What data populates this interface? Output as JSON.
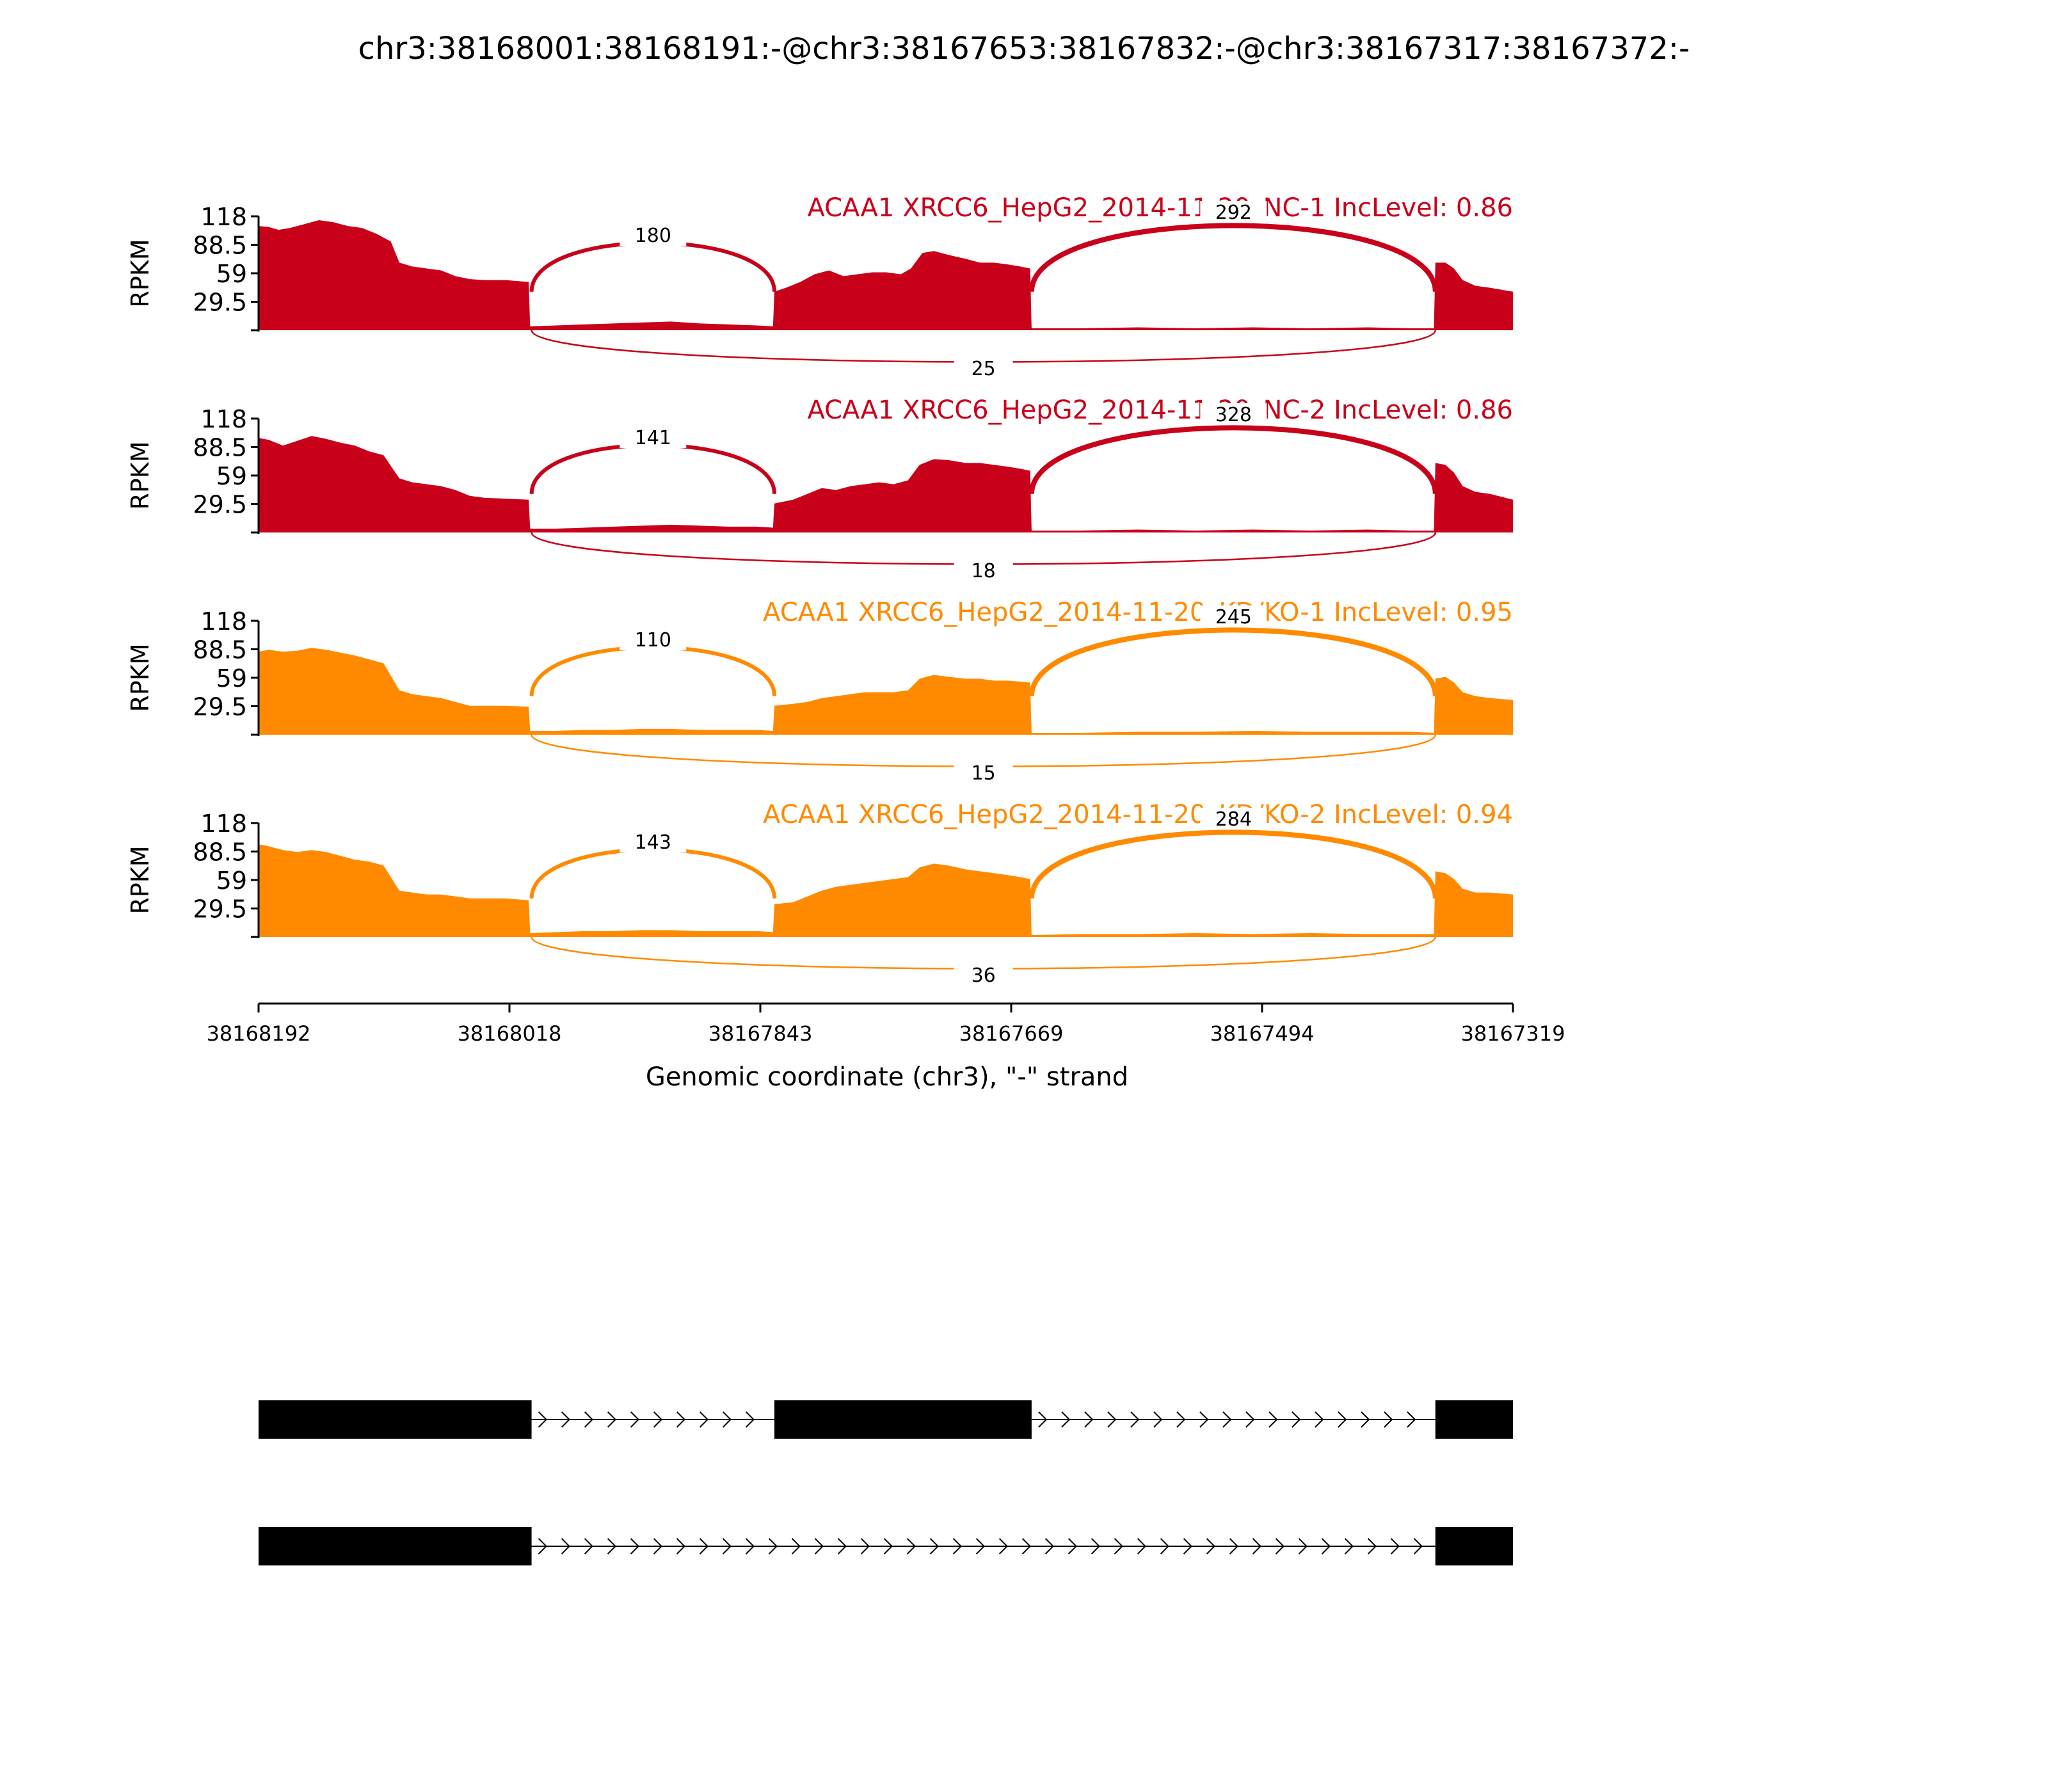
{
  "chart_data": {
    "type": "area",
    "title": "chr3:38168001:38168191:-@chr3:38167653:38167832:-@chr3:38167317:38167372:-",
    "xlabel": "Genomic coordinate (chr3), \"-\" strand",
    "ylabel": "RPKM",
    "xlim": [
      38168192,
      38167319
    ],
    "x_ticks": [
      "38168192",
      "38168018",
      "38167843",
      "38167669",
      "38167494",
      "38167319"
    ],
    "ylim": [
      0,
      118
    ],
    "y_ticks": [
      "118",
      "88.5",
      "59",
      "29.5"
    ],
    "colors": {
      "NC": "#c9001a",
      "KD": "#ff8a00",
      "gene": "#000000"
    },
    "exons": [
      [
        38168192,
        38168002
      ],
      [
        38167833,
        38167654
      ],
      [
        38167373,
        38167319
      ]
    ],
    "panels": [
      {
        "label": "ACAA1 XRCC6_HepG2_2014-11-20_NC-1 IncLevel: 0.86",
        "group": "NC",
        "junctions": [
          {
            "name": "upper-junction-1",
            "count": "180",
            "side": "top"
          },
          {
            "name": "upper-junction-2",
            "count": "292",
            "side": "top"
          },
          {
            "name": "skip-junction",
            "count": "25",
            "side": "bottom"
          }
        ],
        "coverage": [
          [
            38168192,
            108
          ],
          [
            38168185,
            107
          ],
          [
            38168178,
            104
          ],
          [
            38168170,
            106
          ],
          [
            38168160,
            110
          ],
          [
            38168150,
            114
          ],
          [
            38168140,
            112
          ],
          [
            38168130,
            108
          ],
          [
            38168120,
            106
          ],
          [
            38168110,
            100
          ],
          [
            38168100,
            92
          ],
          [
            38168094,
            70
          ],
          [
            38168085,
            66
          ],
          [
            38168075,
            64
          ],
          [
            38168065,
            62
          ],
          [
            38168055,
            56
          ],
          [
            38168045,
            53
          ],
          [
            38168035,
            52
          ],
          [
            38168020,
            52
          ],
          [
            38168004,
            50
          ],
          [
            38168003,
            4
          ],
          [
            38167985,
            5
          ],
          [
            38167965,
            6
          ],
          [
            38167945,
            7
          ],
          [
            38167925,
            8
          ],
          [
            38167905,
            9
          ],
          [
            38167885,
            7
          ],
          [
            38167865,
            6
          ],
          [
            38167845,
            5
          ],
          [
            38167834,
            4
          ],
          [
            38167833,
            40
          ],
          [
            38167825,
            44
          ],
          [
            38167815,
            50
          ],
          [
            38167805,
            58
          ],
          [
            38167795,
            62
          ],
          [
            38167785,
            56
          ],
          [
            38167775,
            58
          ],
          [
            38167765,
            60
          ],
          [
            38167755,
            60
          ],
          [
            38167745,
            58
          ],
          [
            38167738,
            64
          ],
          [
            38167730,
            80
          ],
          [
            38167722,
            82
          ],
          [
            38167712,
            78
          ],
          [
            38167700,
            74
          ],
          [
            38167690,
            70
          ],
          [
            38167680,
            70
          ],
          [
            38167670,
            68
          ],
          [
            38167662,
            66
          ],
          [
            38167655,
            64
          ],
          [
            38167654,
            2
          ],
          [
            38167620,
            2
          ],
          [
            38167580,
            3
          ],
          [
            38167540,
            2
          ],
          [
            38167500,
            3
          ],
          [
            38167460,
            2
          ],
          [
            38167420,
            3
          ],
          [
            38167390,
            2
          ],
          [
            38167374,
            2
          ],
          [
            38167373,
            70
          ],
          [
            38167366,
            70
          ],
          [
            38167360,
            64
          ],
          [
            38167354,
            52
          ],
          [
            38167345,
            46
          ],
          [
            38167335,
            44
          ],
          [
            38167319,
            40
          ]
        ]
      },
      {
        "label": "ACAA1 XRCC6_HepG2_2014-11-20_NC-2 IncLevel: 0.86",
        "group": "NC",
        "junctions": [
          {
            "name": "upper-junction-1",
            "count": "141",
            "side": "top"
          },
          {
            "name": "upper-junction-2",
            "count": "328",
            "side": "top"
          },
          {
            "name": "skip-junction",
            "count": "18",
            "side": "bottom"
          }
        ],
        "coverage": [
          [
            38168192,
            98
          ],
          [
            38168185,
            96
          ],
          [
            38168175,
            90
          ],
          [
            38168165,
            95
          ],
          [
            38168155,
            100
          ],
          [
            38168145,
            97
          ],
          [
            38168135,
            93
          ],
          [
            38168125,
            90
          ],
          [
            38168115,
            84
          ],
          [
            38168105,
            80
          ],
          [
            38168094,
            56
          ],
          [
            38168085,
            52
          ],
          [
            38168075,
            50
          ],
          [
            38168065,
            48
          ],
          [
            38168055,
            44
          ],
          [
            38168045,
            38
          ],
          [
            38168035,
            36
          ],
          [
            38168020,
            35
          ],
          [
            38168004,
            34
          ],
          [
            38168003,
            4
          ],
          [
            38167985,
            4
          ],
          [
            38167965,
            5
          ],
          [
            38167945,
            6
          ],
          [
            38167925,
            7
          ],
          [
            38167905,
            8
          ],
          [
            38167885,
            7
          ],
          [
            38167865,
            6
          ],
          [
            38167845,
            6
          ],
          [
            38167834,
            5
          ],
          [
            38167833,
            30
          ],
          [
            38167820,
            34
          ],
          [
            38167810,
            40
          ],
          [
            38167800,
            46
          ],
          [
            38167790,
            44
          ],
          [
            38167780,
            48
          ],
          [
            38167770,
            50
          ],
          [
            38167760,
            52
          ],
          [
            38167750,
            50
          ],
          [
            38167740,
            54
          ],
          [
            38167732,
            70
          ],
          [
            38167722,
            76
          ],
          [
            38167712,
            75
          ],
          [
            38167700,
            72
          ],
          [
            38167690,
            72
          ],
          [
            38167680,
            70
          ],
          [
            38167670,
            68
          ],
          [
            38167662,
            66
          ],
          [
            38167655,
            64
          ],
          [
            38167654,
            2
          ],
          [
            38167620,
            2
          ],
          [
            38167580,
            3
          ],
          [
            38167540,
            2
          ],
          [
            38167500,
            3
          ],
          [
            38167460,
            2
          ],
          [
            38167420,
            3
          ],
          [
            38167390,
            2
          ],
          [
            38167374,
            2
          ],
          [
            38167373,
            72
          ],
          [
            38167366,
            70
          ],
          [
            38167360,
            62
          ],
          [
            38167354,
            48
          ],
          [
            38167345,
            42
          ],
          [
            38167335,
            40
          ],
          [
            38167319,
            34
          ]
        ]
      },
      {
        "label": "ACAA1 XRCC6_HepG2_2014-11-20_KD/KO-1 IncLevel: 0.95",
        "group": "KD",
        "junctions": [
          {
            "name": "upper-junction-1",
            "count": "110",
            "side": "top"
          },
          {
            "name": "upper-junction-2",
            "count": "245",
            "side": "top"
          },
          {
            "name": "skip-junction",
            "count": "15",
            "side": "bottom"
          }
        ],
        "coverage": [
          [
            38168192,
            86
          ],
          [
            38168185,
            88
          ],
          [
            38168175,
            86
          ],
          [
            38168165,
            87
          ],
          [
            38168155,
            90
          ],
          [
            38168145,
            88
          ],
          [
            38168135,
            85
          ],
          [
            38168125,
            82
          ],
          [
            38168115,
            78
          ],
          [
            38168105,
            74
          ],
          [
            38168094,
            46
          ],
          [
            38168085,
            42
          ],
          [
            38168075,
            40
          ],
          [
            38168065,
            38
          ],
          [
            38168055,
            34
          ],
          [
            38168045,
            30
          ],
          [
            38168035,
            30
          ],
          [
            38168020,
            30
          ],
          [
            38168004,
            29
          ],
          [
            38168003,
            4
          ],
          [
            38167985,
            4
          ],
          [
            38167965,
            5
          ],
          [
            38167945,
            5
          ],
          [
            38167925,
            6
          ],
          [
            38167905,
            6
          ],
          [
            38167885,
            5
          ],
          [
            38167865,
            5
          ],
          [
            38167845,
            5
          ],
          [
            38167834,
            4
          ],
          [
            38167833,
            30
          ],
          [
            38167820,
            32
          ],
          [
            38167810,
            34
          ],
          [
            38167800,
            38
          ],
          [
            38167790,
            40
          ],
          [
            38167780,
            42
          ],
          [
            38167770,
            44
          ],
          [
            38167760,
            44
          ],
          [
            38167750,
            44
          ],
          [
            38167740,
            46
          ],
          [
            38167732,
            58
          ],
          [
            38167722,
            62
          ],
          [
            38167712,
            60
          ],
          [
            38167700,
            58
          ],
          [
            38167690,
            58
          ],
          [
            38167680,
            56
          ],
          [
            38167670,
            56
          ],
          [
            38167662,
            55
          ],
          [
            38167655,
            54
          ],
          [
            38167654,
            2
          ],
          [
            38167620,
            2
          ],
          [
            38167580,
            3
          ],
          [
            38167540,
            3
          ],
          [
            38167500,
            4
          ],
          [
            38167460,
            3
          ],
          [
            38167420,
            3
          ],
          [
            38167390,
            3
          ],
          [
            38167374,
            2
          ],
          [
            38167373,
            58
          ],
          [
            38167366,
            60
          ],
          [
            38167360,
            54
          ],
          [
            38167354,
            44
          ],
          [
            38167345,
            40
          ],
          [
            38167335,
            38
          ],
          [
            38167319,
            36
          ]
        ]
      },
      {
        "label": "ACAA1 XRCC6_HepG2_2014-11-20_KD/KO-2 IncLevel: 0.94",
        "group": "KD",
        "junctions": [
          {
            "name": "upper-junction-1",
            "count": "143",
            "side": "top"
          },
          {
            "name": "upper-junction-2",
            "count": "284",
            "side": "top"
          },
          {
            "name": "skip-junction",
            "count": "36",
            "side": "bottom"
          }
        ],
        "coverage": [
          [
            38168192,
            96
          ],
          [
            38168185,
            94
          ],
          [
            38168175,
            90
          ],
          [
            38168165,
            88
          ],
          [
            38168155,
            90
          ],
          [
            38168145,
            88
          ],
          [
            38168135,
            84
          ],
          [
            38168125,
            80
          ],
          [
            38168115,
            78
          ],
          [
            38168105,
            74
          ],
          [
            38168094,
            48
          ],
          [
            38168085,
            46
          ],
          [
            38168075,
            44
          ],
          [
            38168065,
            44
          ],
          [
            38168055,
            42
          ],
          [
            38168045,
            40
          ],
          [
            38168035,
            40
          ],
          [
            38168020,
            40
          ],
          [
            38168004,
            38
          ],
          [
            38168003,
            4
          ],
          [
            38167985,
            5
          ],
          [
            38167965,
            6
          ],
          [
            38167945,
            6
          ],
          [
            38167925,
            7
          ],
          [
            38167905,
            7
          ],
          [
            38167885,
            6
          ],
          [
            38167865,
            6
          ],
          [
            38167845,
            6
          ],
          [
            38167834,
            5
          ],
          [
            38167833,
            34
          ],
          [
            38167820,
            36
          ],
          [
            38167810,
            42
          ],
          [
            38167800,
            48
          ],
          [
            38167790,
            52
          ],
          [
            38167780,
            54
          ],
          [
            38167770,
            56
          ],
          [
            38167760,
            58
          ],
          [
            38167750,
            60
          ],
          [
            38167740,
            62
          ],
          [
            38167732,
            72
          ],
          [
            38167722,
            76
          ],
          [
            38167712,
            74
          ],
          [
            38167700,
            70
          ],
          [
            38167690,
            68
          ],
          [
            38167680,
            66
          ],
          [
            38167670,
            64
          ],
          [
            38167662,
            62
          ],
          [
            38167655,
            60
          ],
          [
            38167654,
            2
          ],
          [
            38167620,
            3
          ],
          [
            38167580,
            3
          ],
          [
            38167540,
            4
          ],
          [
            38167500,
            3
          ],
          [
            38167460,
            4
          ],
          [
            38167420,
            3
          ],
          [
            38167390,
            3
          ],
          [
            38167374,
            3
          ],
          [
            38167373,
            68
          ],
          [
            38167366,
            66
          ],
          [
            38167360,
            60
          ],
          [
            38167354,
            50
          ],
          [
            38167345,
            46
          ],
          [
            38167335,
            46
          ],
          [
            38167319,
            44
          ]
        ]
      }
    ],
    "isoforms": [
      {
        "name": "isoform-inclusion",
        "exons": [
          0,
          1,
          2
        ]
      },
      {
        "name": "isoform-skipping",
        "exons": [
          0,
          2
        ]
      }
    ]
  }
}
